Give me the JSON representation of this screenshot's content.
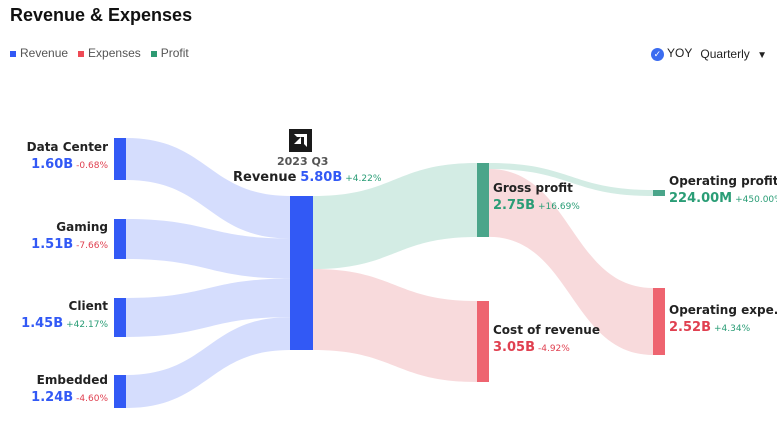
{
  "title": "Revenue & Expenses",
  "legend": [
    "Revenue",
    "Expenses",
    "Profit"
  ],
  "controls": {
    "yoy": "YOY",
    "period": "Quarterly"
  },
  "colors": {
    "revenue": "#3259f5",
    "expense": "#ee6470",
    "profit": "#4aa58a",
    "pos": "#2a9d76",
    "neg": "#e04050"
  },
  "chart_data": {
    "type": "sankey",
    "title": "Revenue & Expenses",
    "period": "2023 Q3",
    "logo": "AMD",
    "nodes": [
      {
        "id": "dc",
        "name": "Data Center",
        "value": "1.60B",
        "change": "-0.68%",
        "num": 1.6,
        "kind": "revenue"
      },
      {
        "id": "gaming",
        "name": "Gaming",
        "value": "1.51B",
        "change": "-7.66%",
        "num": 1.51,
        "kind": "revenue"
      },
      {
        "id": "client",
        "name": "Client",
        "value": "1.45B",
        "change": "+42.17%",
        "num": 1.45,
        "kind": "revenue"
      },
      {
        "id": "embedded",
        "name": "Embedded",
        "value": "1.24B",
        "change": "-4.60%",
        "num": 1.24,
        "kind": "revenue"
      },
      {
        "id": "revenue",
        "name": "Revenue",
        "value": "5.80B",
        "change": "+4.22%",
        "num": 5.8,
        "kind": "revenue"
      },
      {
        "id": "gp",
        "name": "Gross profit",
        "value": "2.75B",
        "change": "+16.69%",
        "num": 2.75,
        "kind": "profit"
      },
      {
        "id": "cor",
        "name": "Cost of revenue",
        "value": "3.05B",
        "change": "-4.92%",
        "num": 3.05,
        "kind": "expense"
      },
      {
        "id": "op",
        "name": "Operating profit",
        "value": "224.00M",
        "change": "+450.00%",
        "num": 0.224,
        "kind": "profit"
      },
      {
        "id": "opex",
        "name": "Operating expe...",
        "value": "2.52B",
        "change": "+4.34%",
        "num": 2.52,
        "kind": "expense"
      }
    ],
    "links": [
      {
        "source": "dc",
        "target": "revenue",
        "value": 1.6
      },
      {
        "source": "gaming",
        "target": "revenue",
        "value": 1.51
      },
      {
        "source": "client",
        "target": "revenue",
        "value": 1.45
      },
      {
        "source": "embedded",
        "target": "revenue",
        "value": 1.24
      },
      {
        "source": "revenue",
        "target": "gp",
        "value": 2.75
      },
      {
        "source": "revenue",
        "target": "cor",
        "value": 3.05
      },
      {
        "source": "gp",
        "target": "op",
        "value": 0.224
      },
      {
        "source": "gp",
        "target": "opex",
        "value": 2.52
      }
    ]
  }
}
